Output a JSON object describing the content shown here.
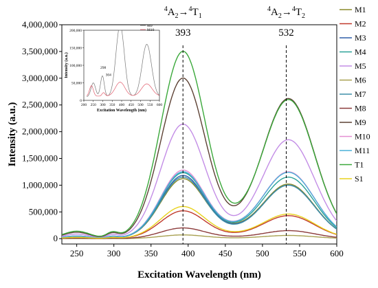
{
  "chart_data": {
    "type": "line",
    "title": "",
    "xlabel": "Excitation Wavelength (nm)",
    "ylabel": "Intensity (a.u.)",
    "xlim": [
      230,
      600
    ],
    "ylim": [
      -100000,
      4000000
    ],
    "xticks": [
      250,
      300,
      350,
      400,
      450,
      500,
      550,
      600
    ],
    "yticks": [
      0,
      500000,
      1000000,
      1500000,
      2000000,
      2500000,
      3000000,
      3500000,
      4000000
    ],
    "ytick_labels": [
      "0",
      "500,000",
      "1,000,000",
      "1,500,000",
      "2,000,000",
      "2,500,000",
      "3,000,000",
      "3,500,000",
      "4,000,000"
    ],
    "grid": false,
    "legend_position": "right",
    "annotations": [
      {
        "text_parts": [
          "4",
          "A",
          "2",
          "→",
          "4",
          "T",
          "1"
        ],
        "value": "393",
        "x": 393
      },
      {
        "text_parts": [
          "4",
          "A",
          "2",
          "→",
          "4",
          "T",
          "2"
        ],
        "value": "532",
        "x": 532
      }
    ],
    "series": [
      {
        "name": "M1",
        "color": "#8a8a2a",
        "peak1": 1120000,
        "trough": 380000,
        "peak2": 1020000
      },
      {
        "name": "M2",
        "color": "#c0392b",
        "peak1": 520000,
        "trough": 120000,
        "peak2": 430000
      },
      {
        "name": "M3",
        "color": "#2f5fa8",
        "peak1": 1180000,
        "trough": 330000,
        "peak2": 1000000
      },
      {
        "name": "M4",
        "color": "#2aa198",
        "peak1": 1230000,
        "trough": 360000,
        "peak2": 1150000
      },
      {
        "name": "M5",
        "color": "#c38de6",
        "peak1": 2140000,
        "trough": 280000,
        "peak2": 1850000
      },
      {
        "name": "M6",
        "color": "#a8a050",
        "peak1": 70000,
        "trough": 20000,
        "peak2": 60000
      },
      {
        "name": "M7",
        "color": "#3d8fa8",
        "peak1": 1150000,
        "trough": 300000,
        "peak2": 1000000
      },
      {
        "name": "M8",
        "color": "#8b3a3a",
        "peak1": 200000,
        "trough": 60000,
        "peak2": 150000
      },
      {
        "name": "M9",
        "color": "#5c4033",
        "peak1": 3000000,
        "trough": 420000,
        "peak2": 2620000
      },
      {
        "name": "M10",
        "color": "#e58fd2",
        "peak1": 1280000,
        "trough": 380000,
        "peak2": 1250000
      },
      {
        "name": "M11",
        "color": "#4ab0d8",
        "peak1": 1250000,
        "trough": 370000,
        "peak2": 1240000
      },
      {
        "name": "T1",
        "color": "#3aa83a",
        "peak1": 3500000,
        "trough": 480000,
        "peak2": 2600000
      },
      {
        "name": "S1",
        "color": "#e8d21c",
        "peak1": 600000,
        "trough": 150000,
        "peak2": 460000
      }
    ],
    "inset": {
      "xlabel": "Excitation Wavelength (nm)",
      "ylabel": "Intensity (a.u.)",
      "xlim": [
        200,
        600
      ],
      "ylim": [
        0,
        200000
      ],
      "xticks": [
        200,
        250,
        300,
        350,
        400,
        450,
        500,
        550,
        600
      ],
      "yticks": [
        0,
        50000,
        100000,
        150000,
        200000
      ],
      "ytick_labels": [
        "0",
        "50,000",
        "100,000",
        "150,000",
        "200,000"
      ],
      "annotations": [
        "298",
        "304"
      ],
      "series": [
        {
          "name": "M9",
          "color": "#777777"
        },
        {
          "name": "M10",
          "color": "#e05a6a"
        }
      ]
    }
  }
}
